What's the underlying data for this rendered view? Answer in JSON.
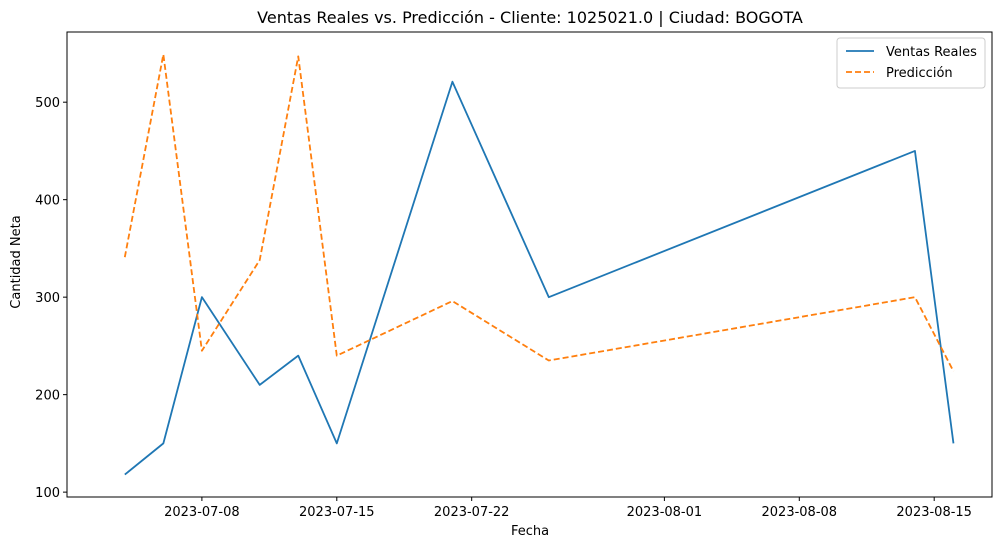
{
  "chart_data": {
    "type": "line",
    "title": "Ventas Reales vs. Predicción - Cliente: 1025021.0 | Ciudad: BOGOTA",
    "xlabel": "Fecha",
    "ylabel": "Cantidad Neta",
    "x_range": [
      "2023-07-01",
      "2023-08-18"
    ],
    "ylim": [
      95,
      572
    ],
    "x_ticks": [
      {
        "date": "2023-07-08",
        "label": "2023-07-08"
      },
      {
        "date": "2023-07-15",
        "label": "2023-07-15"
      },
      {
        "date": "2023-07-22",
        "label": "2023-07-22"
      },
      {
        "date": "2023-08-01",
        "label": "2023-08-01"
      },
      {
        "date": "2023-08-08",
        "label": "2023-08-08"
      },
      {
        "date": "2023-08-15",
        "label": "2023-08-15"
      }
    ],
    "y_ticks": [
      100,
      200,
      300,
      400,
      500
    ],
    "grid": false,
    "legend_position": "top-right",
    "series": [
      {
        "name": "Ventas Reales",
        "color": "#1f77b4",
        "style": "solid",
        "x": [
          "2023-07-04",
          "2023-07-06",
          "2023-07-08",
          "2023-07-11",
          "2023-07-13",
          "2023-07-15",
          "2023-07-21",
          "2023-07-26",
          "2023-08-14",
          "2023-08-16"
        ],
        "values": [
          118,
          150,
          300,
          210,
          240,
          150,
          521,
          300,
          450,
          150
        ]
      },
      {
        "name": "Predicción",
        "color": "#ff7f0e",
        "style": "dashed",
        "x": [
          "2023-07-04",
          "2023-07-06",
          "2023-07-08",
          "2023-07-11",
          "2023-07-13",
          "2023-07-15",
          "2023-07-21",
          "2023-07-26",
          "2023-08-14",
          "2023-08-16"
        ],
        "values": [
          341,
          549,
          245,
          338,
          547,
          240,
          296,
          235,
          300,
          224
        ]
      }
    ]
  }
}
